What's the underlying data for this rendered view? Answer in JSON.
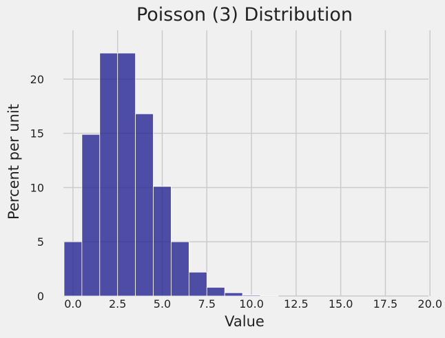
{
  "chart_data": {
    "type": "bar",
    "title": "Poisson (3) Distribution",
    "xlabel": "Value",
    "ylabel": "Percent per unit",
    "bins": [
      {
        "start": -0.5,
        "end": 0.5,
        "value": 5.0
      },
      {
        "start": 0.5,
        "end": 1.5,
        "value": 14.9
      },
      {
        "start": 1.5,
        "end": 2.5,
        "value": 22.4
      },
      {
        "start": 2.5,
        "end": 3.5,
        "value": 22.4
      },
      {
        "start": 3.5,
        "end": 4.5,
        "value": 16.8
      },
      {
        "start": 4.5,
        "end": 5.5,
        "value": 10.1
      },
      {
        "start": 5.5,
        "end": 6.5,
        "value": 5.0
      },
      {
        "start": 6.5,
        "end": 7.5,
        "value": 2.2
      },
      {
        "start": 7.5,
        "end": 8.5,
        "value": 0.8
      },
      {
        "start": 8.5,
        "end": 9.5,
        "value": 0.3
      },
      {
        "start": 9.5,
        "end": 10.5,
        "value": 0.08
      },
      {
        "start": 10.5,
        "end": 11.5,
        "value": 0.02
      }
    ],
    "xlim": [
      -1.0,
      20.3
    ],
    "ylim": [
      0,
      24.5
    ],
    "x_ticks": [
      0.0,
      2.5,
      5.0,
      7.5,
      10.0,
      12.5,
      15.0,
      17.5,
      20.0
    ],
    "x_tick_labels": [
      "0.0",
      "2.5",
      "5.0",
      "7.5",
      "10.0",
      "12.5",
      "15.0",
      "17.5",
      "20.0"
    ],
    "y_ticks": [
      0,
      5,
      10,
      15,
      20
    ],
    "y_tick_labels": [
      "0",
      "5",
      "10",
      "15",
      "20"
    ],
    "grid": true,
    "bar_color": "#1f1f8f",
    "background": "#f0f0f0",
    "grid_color": "#cbcbcb"
  }
}
